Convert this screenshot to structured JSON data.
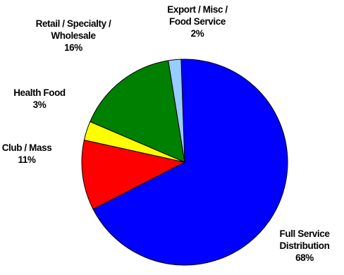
{
  "chart_data": {
    "type": "pie",
    "title": "",
    "start_angle_deg": -2,
    "direction": "clockwise",
    "slices": [
      {
        "label_lines": [
          "Full Service",
          "Distribution"
        ],
        "value_label": "68%",
        "value": 68,
        "color": "#0000FF"
      },
      {
        "label_lines": [
          "Club / Mass"
        ],
        "value_label": "11%",
        "value": 11,
        "color": "#FF0000"
      },
      {
        "label_lines": [
          "Health Food"
        ],
        "value_label": "3%",
        "value": 3,
        "color": "#FFFF00"
      },
      {
        "label_lines": [
          "Retail / Specialty /",
          "Wholesale"
        ],
        "value_label": "16%",
        "value": 16,
        "color": "#008000"
      },
      {
        "label_lines": [
          "Export / Misc /",
          "Food Service"
        ],
        "value_label": "2%",
        "value": 2,
        "color": "#99CCFF"
      }
    ]
  }
}
